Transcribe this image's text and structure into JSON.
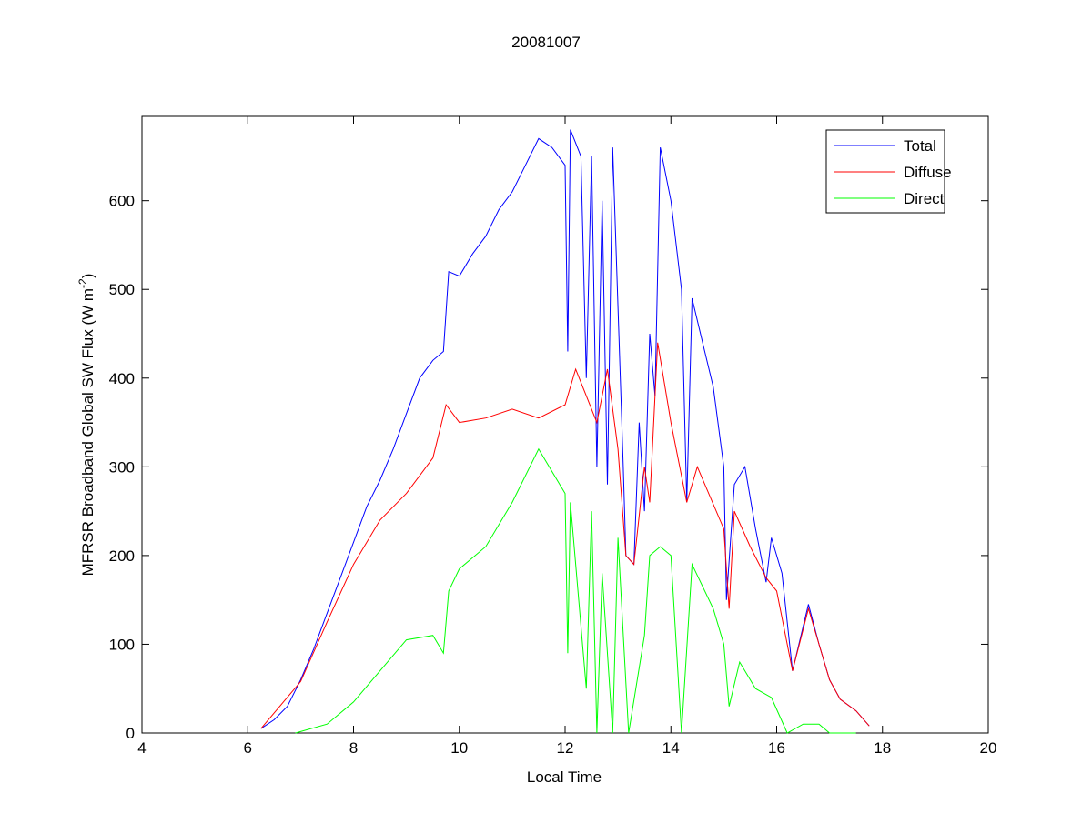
{
  "chart_data": {
    "type": "line",
    "title": "20081007",
    "xlabel": "Local Time",
    "ylabel": "MFRSR Broadband Global SW Flux (W m",
    "ylabel_sup": "-2",
    "ylabel_end": ")",
    "xlim": [
      4,
      20
    ],
    "ylim": [
      0,
      695
    ],
    "xticks": [
      4,
      6,
      8,
      10,
      12,
      14,
      16,
      18,
      20
    ],
    "yticks": [
      0,
      100,
      200,
      300,
      400,
      500,
      600
    ],
    "grid": false,
    "legend_position": "top-right",
    "series": [
      {
        "name": "Total",
        "color": "#0000ff",
        "x": [
          6.25,
          6.5,
          6.75,
          7,
          7.25,
          7.5,
          7.75,
          8,
          8.25,
          8.5,
          8.75,
          9,
          9.25,
          9.5,
          9.7,
          9.8,
          10,
          10.25,
          10.5,
          10.75,
          11,
          11.25,
          11.5,
          11.75,
          12,
          12.05,
          12.1,
          12.3,
          12.4,
          12.5,
          12.6,
          12.7,
          12.8,
          12.9,
          13.1,
          13.15,
          13.3,
          13.4,
          13.5,
          13.6,
          13.7,
          13.8,
          14,
          14.2,
          14.3,
          14.4,
          14.6,
          14.8,
          15,
          15.05,
          15.2,
          15.4,
          15.6,
          15.8,
          15.9,
          16.1,
          16.3,
          16.5,
          16.6,
          16.8,
          17,
          17.2,
          17.5,
          17.75
        ],
        "y": [
          5,
          15,
          30,
          60,
          95,
          135,
          175,
          215,
          255,
          285,
          320,
          360,
          400,
          420,
          430,
          520,
          515,
          540,
          560,
          590,
          610,
          640,
          670,
          660,
          640,
          430,
          680,
          650,
          400,
          650,
          300,
          600,
          280,
          660,
          300,
          200,
          190,
          350,
          250,
          450,
          380,
          660,
          600,
          500,
          260,
          490,
          440,
          390,
          300,
          150,
          280,
          300,
          230,
          170,
          220,
          180,
          70,
          120,
          145,
          100,
          60,
          38,
          25,
          8
        ]
      },
      {
        "name": "Diffuse",
        "color": "#ff0000",
        "x": [
          6.25,
          7,
          7.5,
          8,
          8.5,
          9,
          9.5,
          9.75,
          10,
          10.5,
          11,
          11.5,
          12,
          12.2,
          12.4,
          12.6,
          12.8,
          13,
          13.15,
          13.3,
          13.5,
          13.6,
          13.75,
          14,
          14.3,
          14.5,
          15,
          15.1,
          15.2,
          15.5,
          15.8,
          16,
          16.3,
          16.6,
          16.8,
          17,
          17.2,
          17.5,
          17.75
        ],
        "y": [
          5,
          58,
          125,
          190,
          240,
          270,
          310,
          370,
          350,
          355,
          365,
          355,
          370,
          410,
          380,
          350,
          410,
          320,
          200,
          190,
          300,
          260,
          440,
          350,
          260,
          300,
          230,
          140,
          250,
          210,
          175,
          160,
          70,
          140,
          100,
          60,
          38,
          25,
          8
        ]
      },
      {
        "name": "Direct",
        "color": "#00ff00",
        "x": [
          6.9,
          7.5,
          8,
          8.5,
          9,
          9.5,
          9.7,
          9.8,
          10,
          10.5,
          11,
          11.5,
          12,
          12.05,
          12.1,
          12.4,
          12.5,
          12.6,
          12.7,
          12.9,
          13,
          13.2,
          13.5,
          13.6,
          13.8,
          14,
          14.2,
          14.4,
          14.8,
          15,
          15.1,
          15.3,
          15.6,
          15.9,
          16.2,
          16.5,
          16.8,
          17,
          17.5
        ],
        "y": [
          0,
          10,
          35,
          70,
          105,
          110,
          90,
          160,
          185,
          210,
          260,
          320,
          270,
          90,
          260,
          50,
          250,
          0,
          180,
          0,
          220,
          0,
          110,
          200,
          210,
          200,
          0,
          190,
          140,
          100,
          30,
          80,
          50,
          40,
          0,
          10,
          10,
          0,
          0
        ]
      }
    ]
  }
}
